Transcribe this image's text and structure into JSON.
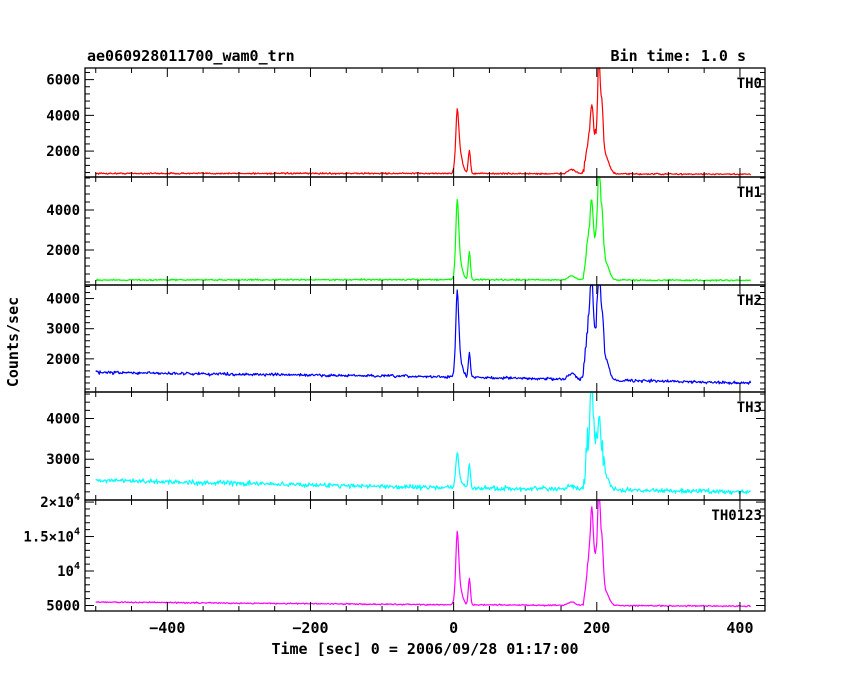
{
  "header": {
    "title": "ae060928011700_wam0_trn",
    "bin_time": "Bin time: 1.0 s"
  },
  "chart_data": {
    "type": "line",
    "title": "ae060928011700_wam0_trn",
    "subtitle": "Bin time: 1.0 s",
    "xlabel": "Time [sec] 0 = 2006/09/28 01:17:00",
    "ylabel": "Counts/sec",
    "xlim": [
      -515,
      435
    ],
    "x_ticks": [
      {
        "value": -400,
        "label": "−400"
      },
      {
        "value": -200,
        "label": "−200"
      },
      {
        "value": 0,
        "label": "0"
      },
      {
        "value": 200,
        "label": "200"
      },
      {
        "value": 400,
        "label": "400"
      }
    ],
    "panels": [
      {
        "name": "TH0",
        "color": "#ff0000",
        "ylim": [
          550,
          6650
        ],
        "y_ticks": [
          {
            "value": 2000,
            "label": "2000"
          },
          {
            "value": 4000,
            "label": "4000"
          },
          {
            "value": 6000,
            "label": "6000"
          }
        ],
        "baseline": [
          [
            -500,
            750
          ],
          [
            0,
            750
          ],
          [
            415,
            700
          ]
        ],
        "noise": 40,
        "peaks": [
          [
            5,
            2700,
            2
          ],
          [
            8,
            1200,
            4
          ],
          [
            22,
            1300,
            1.5
          ],
          [
            165,
            250,
            5
          ],
          [
            188,
            1800,
            3
          ],
          [
            193,
            3200,
            2
          ],
          [
            199,
            2200,
            3
          ],
          [
            203,
            5900,
            1.5
          ],
          [
            207,
            3400,
            2
          ],
          [
            212,
            1000,
            5
          ]
        ]
      },
      {
        "name": "TH1",
        "color": "#00ff00",
        "ylim": [
          250,
          5650
        ],
        "y_ticks": [
          {
            "value": 2000,
            "label": "2000"
          },
          {
            "value": 4000,
            "label": "4000"
          }
        ],
        "baseline": [
          [
            -500,
            500
          ],
          [
            0,
            520
          ],
          [
            415,
            480
          ]
        ],
        "noise": 35,
        "peaks": [
          [
            5,
            3300,
            2
          ],
          [
            8,
            900,
            4
          ],
          [
            22,
            1400,
            1.5
          ],
          [
            165,
            200,
            5
          ],
          [
            188,
            2100,
            3
          ],
          [
            193,
            3300,
            2
          ],
          [
            199,
            2300,
            3
          ],
          [
            203,
            5100,
            1.5
          ],
          [
            207,
            3000,
            2
          ],
          [
            212,
            900,
            5
          ]
        ]
      },
      {
        "name": "TH2",
        "color": "#0000ff",
        "ylim": [
          900,
          4450
        ],
        "y_ticks": [
          {
            "value": 2000,
            "label": "2000"
          },
          {
            "value": 3000,
            "label": "3000"
          },
          {
            "value": 4000,
            "label": "4000"
          }
        ],
        "baseline": [
          [
            -500,
            1550
          ],
          [
            0,
            1400
          ],
          [
            415,
            1200
          ]
        ],
        "noise": 45,
        "peaks": [
          [
            5,
            2400,
            2
          ],
          [
            8,
            600,
            4
          ],
          [
            22,
            800,
            1.5
          ],
          [
            165,
            200,
            5
          ],
          [
            188,
            2000,
            3
          ],
          [
            193,
            2800,
            2
          ],
          [
            199,
            1900,
            3
          ],
          [
            203,
            3300,
            1.5
          ],
          [
            207,
            1900,
            2
          ],
          [
            212,
            700,
            5
          ]
        ]
      },
      {
        "name": "TH3",
        "color": "#00ffff",
        "ylim": [
          2000,
          4650
        ],
        "y_ticks": [
          {
            "value": 3000,
            "label": "3000"
          },
          {
            "value": 4000,
            "label": "4000"
          }
        ],
        "baseline": [
          [
            -500,
            2480
          ],
          [
            0,
            2300
          ],
          [
            415,
            2200
          ]
        ],
        "noise": 55,
        "peaks": [
          [
            5,
            700,
            2
          ],
          [
            8,
            200,
            4
          ],
          [
            22,
            550,
            1.5
          ],
          [
            165,
            80,
            5
          ],
          [
            188,
            1300,
            3
          ],
          [
            193,
            2100,
            2
          ],
          [
            199,
            1200,
            3
          ],
          [
            203,
            1300,
            1.5
          ],
          [
            207,
            800,
            2
          ],
          [
            212,
            350,
            5
          ]
        ]
      },
      {
        "name": "TH0123",
        "color": "#ff00ff",
        "ylim": [
          4200,
          20300
        ],
        "y_ticks": [
          {
            "value": 5000,
            "label": "5000"
          },
          {
            "value": 10000,
            "label": "10",
            "exp": "4"
          },
          {
            "value": 15000,
            "label": "1.5×10",
            "exp": "4"
          },
          {
            "value": 20000,
            "label": "2×10",
            "exp": "4"
          }
        ],
        "baseline": [
          [
            -500,
            5500
          ],
          [
            0,
            5100
          ],
          [
            415,
            4900
          ]
        ],
        "noise": 90,
        "peaks": [
          [
            5,
            8700,
            2
          ],
          [
            8,
            2500,
            4
          ],
          [
            22,
            3800,
            1.5
          ],
          [
            165,
            500,
            5
          ],
          [
            188,
            6000,
            3
          ],
          [
            193,
            12000,
            2
          ],
          [
            199,
            7500,
            3
          ],
          [
            203,
            14500,
            1.5
          ],
          [
            207,
            8500,
            2
          ],
          [
            212,
            2000,
            5
          ]
        ]
      }
    ]
  }
}
